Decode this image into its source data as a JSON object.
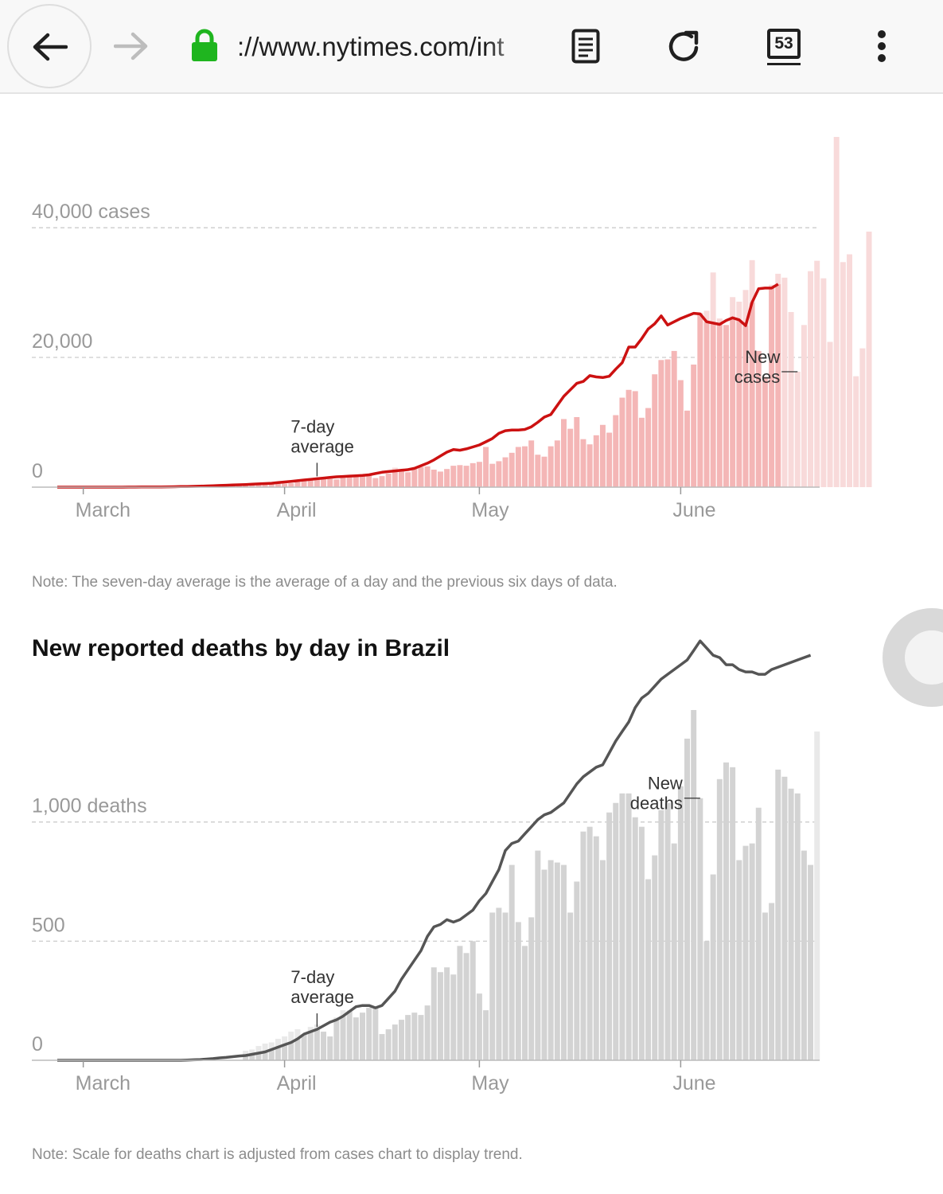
{
  "browser": {
    "url": "://www.nytimes.com/int",
    "tab_count": "53",
    "icons": {
      "back": "arrow-left-icon",
      "forward": "arrow-right-icon",
      "lock": "lock-icon",
      "reader": "reader-mode-icon",
      "reload": "reload-icon",
      "tabs": "tabs-icon",
      "menu": "more-vert-icon"
    },
    "colors": {
      "lock": "#1fb51f"
    }
  },
  "cases_note": "Note: The seven-day average is the average of a day and the previous six days of data.",
  "deaths_title": "New reported deaths by day in Brazil",
  "deaths_note": "Note: Scale for deaths chart is adjusted from cases chart to display trend.",
  "chart_data": [
    {
      "id": "cases",
      "type": "bar",
      "title": "",
      "x_type": "date",
      "x_start": "2020-02-26",
      "x_ticks": [
        {
          "date": "2020-03-01",
          "label": "March"
        },
        {
          "date": "2020-04-01",
          "label": "April"
        },
        {
          "date": "2020-05-01",
          "label": "May"
        },
        {
          "date": "2020-06-01",
          "label": "June"
        }
      ],
      "y_ticks": [
        {
          "value": 0,
          "label": "0"
        },
        {
          "value": 20000,
          "label": "20,000"
        },
        {
          "value": 40000,
          "label": "40,000 cases"
        }
      ],
      "ylim": [
        0,
        54000
      ],
      "grid": true,
      "annotations": [
        {
          "text": [
            "New",
            "cases"
          ],
          "date": "2020-06-19",
          "target": "bar"
        },
        {
          "text": [
            "7-day",
            "average"
          ],
          "date": "2020-04-06",
          "target": "line"
        }
      ],
      "colors": {
        "bar": "#f4b6b6",
        "bar_above_avg": "#f8dada",
        "line": "#cc1111"
      },
      "series": [
        {
          "name": "New cases",
          "kind": "bars",
          "start": "2020-03-15",
          "values": [
            70,
            60,
            80,
            120,
            110,
            140,
            170,
            200,
            230,
            270,
            330,
            350,
            390,
            480,
            560,
            500,
            700,
            550,
            600,
            800,
            1000,
            1100,
            1200,
            1400,
            1300,
            1200,
            1500,
            1600,
            1700,
            1800,
            1900,
            1400,
            1700,
            2100,
            3000,
            2500,
            2300,
            2800,
            3100,
            3200,
            2700,
            2400,
            2800,
            3300,
            3400,
            3300,
            3700,
            3900,
            6200,
            3600,
            4000,
            4600,
            5300,
            6200,
            6300,
            7200,
            5000,
            4700,
            6300,
            7200,
            10500,
            9000,
            10800,
            7400,
            6600,
            8000,
            9600,
            8400,
            11100,
            13800,
            15000,
            14800,
            10700,
            12200,
            17400,
            19600,
            19700,
            21000,
            16500,
            11800,
            18900,
            26900,
            27200,
            33100,
            26000,
            25000,
            29300,
            28600,
            30400,
            35000,
            21000,
            17000,
            31200,
            32900,
            32300,
            27000,
            17800,
            25000,
            33300,
            34900,
            32200,
            22400,
            54000,
            34700,
            35900,
            17100,
            21400,
            39400
          ]
        },
        {
          "name": "7-day average",
          "kind": "line",
          "start": "2020-02-26",
          "values": [
            0,
            0,
            0,
            0,
            0,
            0,
            0,
            0,
            0,
            0,
            0,
            10,
            10,
            20,
            20,
            30,
            40,
            50,
            60,
            80,
            100,
            120,
            150,
            180,
            220,
            260,
            300,
            330,
            370,
            400,
            450,
            500,
            550,
            600,
            700,
            800,
            900,
            1000,
            1100,
            1200,
            1300,
            1400,
            1500,
            1600,
            1650,
            1700,
            1750,
            1800,
            1900,
            2100,
            2300,
            2400,
            2500,
            2600,
            2700,
            2900,
            3300,
            3700,
            4200,
            4800,
            5400,
            5800,
            5700,
            5900,
            6200,
            6500,
            7000,
            7500,
            8300,
            8700,
            8800,
            8800,
            8900,
            9300,
            10000,
            10800,
            11200,
            12600,
            14000,
            15000,
            16000,
            16300,
            17200,
            17000,
            16900,
            17100,
            18200,
            19200,
            21600,
            21600,
            22900,
            24400,
            25200,
            26400,
            25000,
            25500,
            26000,
            26400,
            26800,
            26700,
            25500,
            25300,
            25100,
            25700,
            26100,
            25800,
            24900,
            28500,
            30600,
            30700,
            30700,
            31300
          ]
        }
      ]
    },
    {
      "id": "deaths",
      "type": "bar",
      "title": "New reported deaths by day in Brazil",
      "x_type": "date",
      "x_start": "2020-02-26",
      "x_ticks": [
        {
          "date": "2020-03-01",
          "label": "March"
        },
        {
          "date": "2020-04-01",
          "label": "April"
        },
        {
          "date": "2020-05-01",
          "label": "May"
        },
        {
          "date": "2020-06-01",
          "label": "June"
        }
      ],
      "y_ticks": [
        {
          "value": 0,
          "label": "0"
        },
        {
          "value": 500,
          "label": "500"
        },
        {
          "value": 1000,
          "label": "1,000 deaths"
        }
      ],
      "ylim": [
        0,
        1470
      ],
      "grid": true,
      "annotations": [
        {
          "text": [
            "New",
            "deaths"
          ],
          "date": "2020-06-04",
          "target": "bar"
        },
        {
          "text": [
            "7-day",
            "average"
          ],
          "date": "2020-04-06",
          "target": "line"
        }
      ],
      "colors": {
        "bar": "#d3d3d3",
        "bar_above_avg": "#e9e9e9",
        "line": "#555555"
      },
      "series": [
        {
          "name": "New deaths",
          "kind": "bars",
          "start": "2020-03-26",
          "values": [
            40,
            45,
            60,
            70,
            75,
            90,
            100,
            120,
            130,
            110,
            140,
            150,
            120,
            100,
            180,
            210,
            210,
            180,
            200,
            220,
            220,
            110,
            130,
            150,
            170,
            190,
            200,
            190,
            230,
            390,
            370,
            390,
            360,
            480,
            450,
            500,
            280,
            210,
            620,
            640,
            620,
            820,
            580,
            480,
            600,
            880,
            800,
            840,
            830,
            820,
            620,
            750,
            960,
            980,
            940,
            840,
            1040,
            1080,
            1120,
            1120,
            1020,
            980,
            760,
            860,
            1050,
            1080,
            910,
            1150,
            1350,
            1470,
            1100,
            500,
            780,
            1180,
            1250,
            1230,
            840,
            900,
            910,
            1060,
            620,
            660,
            1220,
            1190,
            1140,
            1120,
            880,
            820,
            1380
          ]
        },
        {
          "name": "7-day average",
          "kind": "line",
          "start": "2020-02-26",
          "values": [
            0,
            0,
            0,
            0,
            0,
            0,
            0,
            0,
            0,
            0,
            0,
            0,
            0,
            0,
            0,
            0,
            0,
            0,
            0,
            0,
            1,
            2,
            3,
            5,
            7,
            10,
            12,
            15,
            18,
            20,
            25,
            30,
            35,
            45,
            55,
            65,
            75,
            90,
            110,
            120,
            130,
            145,
            160,
            170,
            185,
            205,
            225,
            230,
            230,
            220,
            230,
            260,
            290,
            340,
            380,
            420,
            460,
            520,
            560,
            570,
            590,
            580,
            590,
            610,
            630,
            670,
            700,
            750,
            800,
            880,
            910,
            920,
            950,
            980,
            1010,
            1030,
            1040,
            1060,
            1080,
            1120,
            1160,
            1190,
            1210,
            1230,
            1240,
            1290,
            1340,
            1380,
            1420,
            1480,
            1520,
            1540,
            1570,
            1600,
            1620,
            1640,
            1660,
            1680,
            1720,
            1760,
            1730,
            1700,
            1690,
            1660,
            1660,
            1640,
            1630,
            1630,
            1620,
            1620,
            1640,
            1650,
            1660,
            1670,
            1680,
            1690,
            1700
          ]
        }
      ]
    }
  ]
}
